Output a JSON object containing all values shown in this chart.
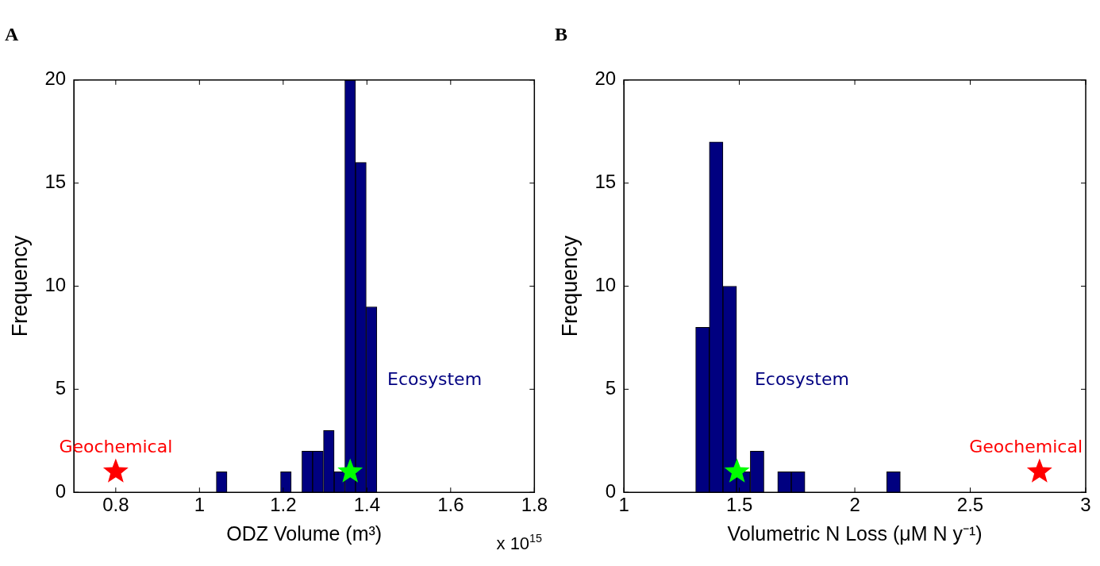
{
  "chart_data": [
    {
      "type": "histogram",
      "title": "A",
      "xlabel": "ODZ Volume (m³)",
      "ylabel": "Frequency",
      "series": [
        {
          "type": "histogram",
          "name": "Ecosystem",
          "color": "#000080",
          "bins": [
            1.04,
            1.066,
            1.091,
            1.117,
            1.142,
            1.168,
            1.194,
            1.219,
            1.245,
            1.27,
            1.296,
            1.322,
            1.347,
            1.373,
            1.398,
            1.424
          ],
          "values": [
            1,
            0,
            0,
            0,
            0,
            0,
            1,
            0,
            2,
            2,
            3,
            1,
            20,
            16,
            9
          ]
        },
        {
          "type": "scatter",
          "name": "Geochemical",
          "color": "#ff0000",
          "x": [
            0.8
          ],
          "values": [
            1
          ]
        },
        {
          "type": "scatter",
          "color": "#00ff00",
          "x": [
            1.36
          ],
          "values": [
            1
          ]
        }
      ],
      "marker": "star",
      "xlim": [
        0.7,
        1.8
      ],
      "xticks": [
        0.8,
        1,
        1.2,
        1.4,
        1.6,
        1.8
      ],
      "ylim": [
        0,
        20
      ],
      "yticks": [
        0,
        5,
        10,
        15,
        20
      ],
      "annotations": [
        "x 10$^{15}$"
      ]
    },
    {
      "type": "histogram",
      "title": "B",
      "xlabel": "Volumetric N Loss (μM N y⁻¹)",
      "ylabel": "Frequency",
      "series": [
        {
          "type": "histogram",
          "name": "Ecosystem",
          "color": "#000080",
          "bins": [
            1.311,
            1.37,
            1.429,
            1.488,
            1.547,
            1.607,
            1.666,
            1.725,
            1.784,
            1.843,
            1.902,
            1.961,
            2.02,
            2.079,
            2.138,
            2.197
          ],
          "values": [
            8,
            17,
            10,
            1,
            2,
            0,
            1,
            1,
            0,
            0,
            0,
            0,
            0,
            0,
            1
          ]
        },
        {
          "type": "scatter",
          "name": "Geochemical",
          "color": "#ff0000",
          "x": [
            2.8
          ],
          "values": [
            1
          ]
        },
        {
          "type": "scatter",
          "color": "#00ff00",
          "x": [
            1.49
          ],
          "values": [
            1
          ]
        }
      ],
      "marker": "star",
      "xlim": [
        1,
        3
      ],
      "xticks": [
        1,
        1.5,
        2,
        2.5,
        3
      ],
      "ylim": [
        0,
        20
      ],
      "yticks": [
        0,
        5,
        10,
        15,
        20
      ]
    }
  ]
}
